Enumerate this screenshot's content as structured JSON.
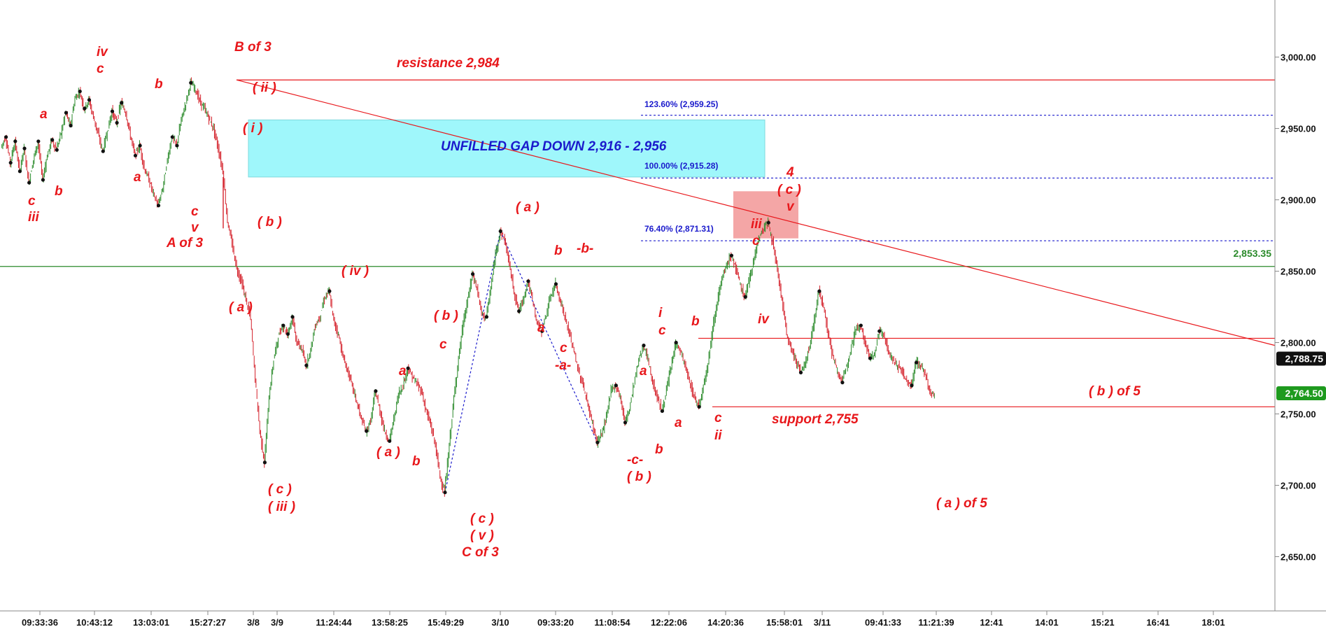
{
  "chart_data": {
    "type": "line",
    "title": "",
    "xlabel": "",
    "ylabel": "",
    "ylim": [
      2612,
      3040
    ],
    "y_ticks": [
      "3,000.00",
      "2,950.00",
      "2,900.00",
      "2,850.00",
      "2,800.00",
      "2,750.00",
      "2,700.00",
      "2,650.00"
    ],
    "x_ticks": [
      "09:33:36",
      "10:43:12",
      "13:03:01",
      "15:27:27",
      "3/8",
      "3/9",
      "11:24:44",
      "13:58:25",
      "15:49:29",
      "3/10",
      "09:33:20",
      "11:08:54",
      "12:22:06",
      "14:20:36",
      "15:58:01",
      "3/11",
      "09:41:33",
      "11:21:39",
      "12:41",
      "14:01",
      "15:21",
      "16:41",
      "18:01"
    ],
    "grid": false,
    "legend": "none",
    "colors": {
      "bars": "#2a8a2a",
      "wave_labels": "#e8171b",
      "fib": "#1a1acc",
      "gap": "#9ff7fb",
      "zone": "#f4a6a6"
    },
    "series": [
      {
        "values": [
          2937,
          2944,
          2926,
          2941,
          2920,
          2936,
          2912,
          2928,
          2941,
          2914,
          2931,
          2942,
          2935,
          2947,
          2961,
          2952,
          2971,
          2976,
          2964,
          2970,
          2958,
          2946,
          2934,
          2948,
          2962,
          2954,
          2968,
          2961,
          2945,
          2931,
          2938,
          2922,
          2914,
          2904,
          2896,
          2908,
          2928,
          2944,
          2938,
          2956,
          2968,
          2982,
          2978,
          2969,
          2964,
          2957,
          2950,
          2936,
          2920,
          2885,
          2869,
          2852,
          2843,
          2830,
          2817,
          2775,
          2738,
          2716,
          2762,
          2788,
          2804,
          2812,
          2806,
          2818,
          2800,
          2796,
          2784,
          2795,
          2812,
          2818,
          2831,
          2836,
          2815,
          2806,
          2790,
          2780,
          2770,
          2758,
          2746,
          2738,
          2745,
          2766,
          2752,
          2738,
          2731,
          2746,
          2764,
          2770,
          2782,
          2776,
          2771,
          2766,
          2752,
          2742,
          2728,
          2706,
          2695,
          2728,
          2761,
          2789,
          2813,
          2830,
          2848,
          2838,
          2820,
          2818,
          2838,
          2862,
          2878,
          2872,
          2855,
          2836,
          2822,
          2830,
          2843,
          2830,
          2814,
          2808,
          2820,
          2833,
          2841,
          2830,
          2818,
          2806,
          2794,
          2779,
          2770,
          2756,
          2743,
          2730,
          2736,
          2748,
          2766,
          2770,
          2762,
          2744,
          2754,
          2772,
          2788,
          2798,
          2788,
          2772,
          2762,
          2752,
          2766,
          2783,
          2800,
          2794,
          2784,
          2772,
          2762,
          2755,
          2770,
          2786,
          2810,
          2829,
          2844,
          2854,
          2861,
          2852,
          2840,
          2832,
          2845,
          2860,
          2873,
          2880,
          2884,
          2870,
          2850,
          2830,
          2806,
          2795,
          2788,
          2779,
          2785,
          2798,
          2816,
          2836,
          2826,
          2806,
          2790,
          2780,
          2772,
          2784,
          2798,
          2810,
          2812,
          2800,
          2789,
          2792,
          2808,
          2806,
          2794,
          2787,
          2784,
          2780,
          2773,
          2770,
          2786,
          2784,
          2778,
          2765,
          2762
        ]
      }
    ],
    "annotations": [
      "B of 3",
      "( ii )",
      "( i )",
      "iv",
      "c",
      "a",
      "b",
      "a",
      "b",
      "c",
      "iii",
      "c",
      "v",
      "A of 3",
      "( b )",
      "( a )",
      "( c )",
      "( iii )",
      "( iv )",
      "( b )",
      "c",
      "a",
      "( a )",
      "b",
      "( c )",
      "( v )",
      "C of 3",
      "( a )",
      "b",
      "-b-",
      "a",
      "c",
      "-a-",
      "-c-",
      "( b )",
      "a",
      "b",
      "i",
      "c",
      "a",
      "b",
      "c",
      "ii",
      "c",
      "iii",
      "iv",
      "4",
      "( c )",
      "v",
      "( b ) of 5",
      "( a ) of 5"
    ],
    "text_boxes": {
      "resistance": "resistance 2,984",
      "gap": "UNFILLED GAP DOWN 2,916 - 2,956",
      "support": "support 2,755"
    },
    "fib_levels": [
      {
        "label": "123.60% (2,959.25)",
        "value": 2959.25
      },
      {
        "label": "100.00% (2,915.28)",
        "value": 2915.28
      },
      {
        "label": "76.40% (2,871.31)",
        "value": 2871.31
      }
    ],
    "horizontal_levels": [
      {
        "value": 2984,
        "color": "#e8171b"
      },
      {
        "value": 2853.35,
        "color": "#2a8a2a",
        "label": "2,853.35"
      },
      {
        "value": 2803,
        "color": "#e8171b"
      },
      {
        "value": 2755,
        "color": "#e8171b"
      }
    ],
    "trendline": {
      "from_value": 2984,
      "to_value": 2798
    },
    "gap_zone": {
      "top": 2956,
      "bottom": 2916
    },
    "wave4_zone": {
      "top": 2906,
      "bottom": 2873
    },
    "price_tags": [
      {
        "label": "2,788.75",
        "value": 2788.75,
        "color": "#111111"
      },
      {
        "label": "2,764.50",
        "value": 2764.5,
        "color": "#1e9a1e"
      }
    ]
  }
}
